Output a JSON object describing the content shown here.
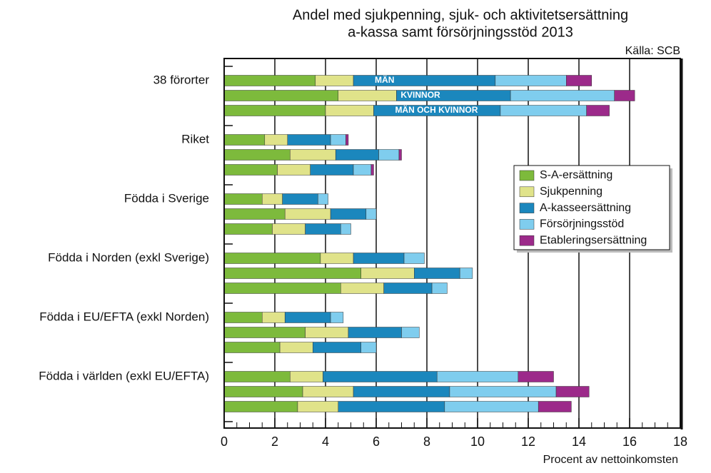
{
  "chart_data": {
    "type": "stacked-barh",
    "title": "Andel med sjukpenning, sjuk- och aktivitetsersättning",
    "subtitle": "a-kassa samt försörjningsstöd 2013",
    "source": "Källa: SCB",
    "xlabel": "Procent av nettoinkomsten",
    "categories": [
      "38 förorter",
      null,
      null,
      "Riket",
      null,
      null,
      "Födda i Sverige",
      null,
      null,
      "Födda i Norden (exkl Sverige)",
      null,
      null,
      "Födda i EU/EFTA (exkl Norden)",
      null,
      null,
      "Födda i världen (exkl EU/EFTA)",
      null,
      null
    ],
    "bar_labels": [
      "MÄN",
      "KVINNOR",
      "MÄN OCH KVINNOR"
    ],
    "series": [
      {
        "name": "S-A-ersättning",
        "color": "#7dba3c",
        "values": [
          3.6,
          4.5,
          4.0,
          1.6,
          2.6,
          2.1,
          1.5,
          2.4,
          1.9,
          3.8,
          5.4,
          4.6,
          1.5,
          3.2,
          2.2,
          2.6,
          3.1,
          2.9
        ]
      },
      {
        "name": "Sjukpenning",
        "color": "#e0e38a",
        "values": [
          1.5,
          2.3,
          1.9,
          0.9,
          1.8,
          1.3,
          0.8,
          1.8,
          1.3,
          1.3,
          2.1,
          1.7,
          0.9,
          1.7,
          1.3,
          1.3,
          2.0,
          1.6
        ]
      },
      {
        "name": "A-kasseersättning",
        "color": "#1b87bd",
        "values": [
          5.6,
          4.5,
          5.0,
          1.7,
          1.7,
          1.7,
          1.4,
          1.4,
          1.4,
          2.0,
          1.8,
          1.9,
          1.8,
          2.1,
          1.9,
          4.5,
          3.8,
          4.2
        ]
      },
      {
        "name": "Försörjningsstöd",
        "color": "#7fcdee",
        "values": [
          2.8,
          4.1,
          3.4,
          0.6,
          0.8,
          0.7,
          0.4,
          0.4,
          0.4,
          0.8,
          0.5,
          0.6,
          0.5,
          0.7,
          0.6,
          3.2,
          4.2,
          3.7
        ]
      },
      {
        "name": "Etableringsersättning",
        "color": "#9c2a8a",
        "values": [
          1.0,
          0.8,
          0.9,
          0.1,
          0.1,
          0.1,
          null,
          null,
          null,
          null,
          null,
          null,
          null,
          null,
          null,
          1.4,
          1.3,
          1.3
        ]
      }
    ],
    "xlim": [
      0,
      18
    ],
    "xticks": [
      0,
      2,
      4,
      6,
      8,
      10,
      12,
      14,
      16,
      18
    ],
    "grid": true,
    "legend": "center right"
  }
}
